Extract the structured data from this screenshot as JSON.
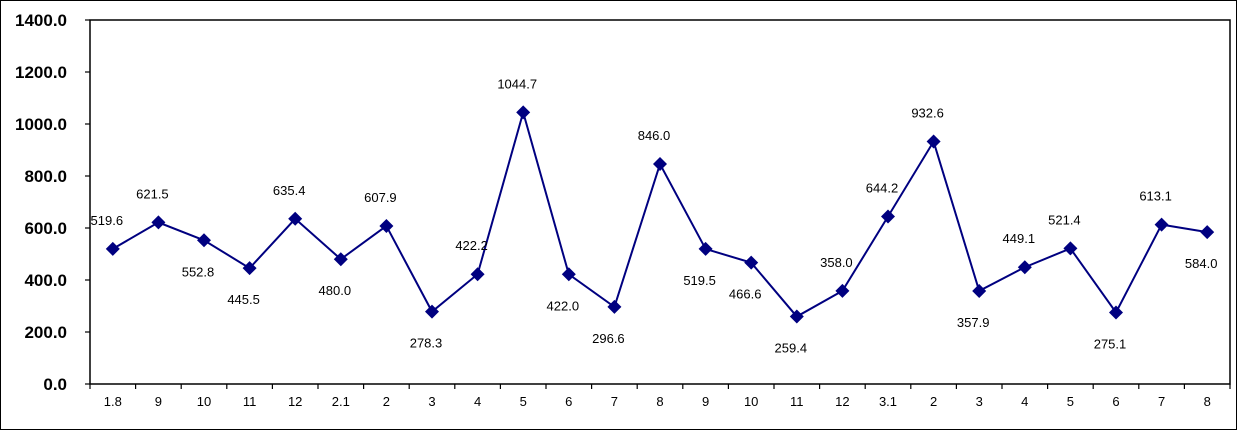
{
  "chart_data": {
    "type": "line",
    "categories": [
      "1.8",
      "9",
      "10",
      "11",
      "12",
      "2.1",
      "2",
      "3",
      "4",
      "5",
      "6",
      "7",
      "8",
      "9",
      "10",
      "11",
      "12",
      "3.1",
      "2",
      "3",
      "4",
      "5",
      "6",
      "7",
      "8"
    ],
    "series": [
      {
        "values": [
          519.6,
          621.5,
          552.8,
          445.5,
          635.4,
          480.0,
          607.9,
          278.3,
          422.2,
          1044.7,
          422.0,
          296.6,
          846.0,
          519.5,
          466.6,
          259.4,
          358.0,
          644.2,
          932.6,
          357.9,
          449.1,
          521.4,
          275.1,
          613.1,
          584.0
        ],
        "labels": [
          "519.6",
          "621.5",
          "552.8",
          "445.5",
          "635.4",
          "480.0",
          "607.9",
          "278.3",
          "422.2",
          "1044.7",
          "422.0",
          "296.6",
          "846.0",
          "519.5",
          "466.6",
          "259.4",
          "358.0",
          "644.2",
          "932.6",
          "357.9",
          "449.1",
          "521.4",
          "275.1",
          "613.1",
          "584.0"
        ],
        "label_side": [
          "above",
          "above",
          "below",
          "below",
          "above",
          "below",
          "above",
          "below",
          "above",
          "above",
          "below",
          "below",
          "above",
          "below",
          "below",
          "below",
          "above",
          "above",
          "above",
          "below",
          "above",
          "above",
          "below",
          "above",
          "below"
        ],
        "color": "#000080"
      }
    ],
    "y_ticks": [
      "0.0",
      "200.0",
      "400.0",
      "600.0",
      "800.0",
      "1000.0",
      "1200.0",
      "1400.0"
    ],
    "ylim": [
      0,
      1400
    ],
    "grid": false,
    "legend": "none",
    "title": "",
    "xlabel": "",
    "ylabel": ""
  }
}
